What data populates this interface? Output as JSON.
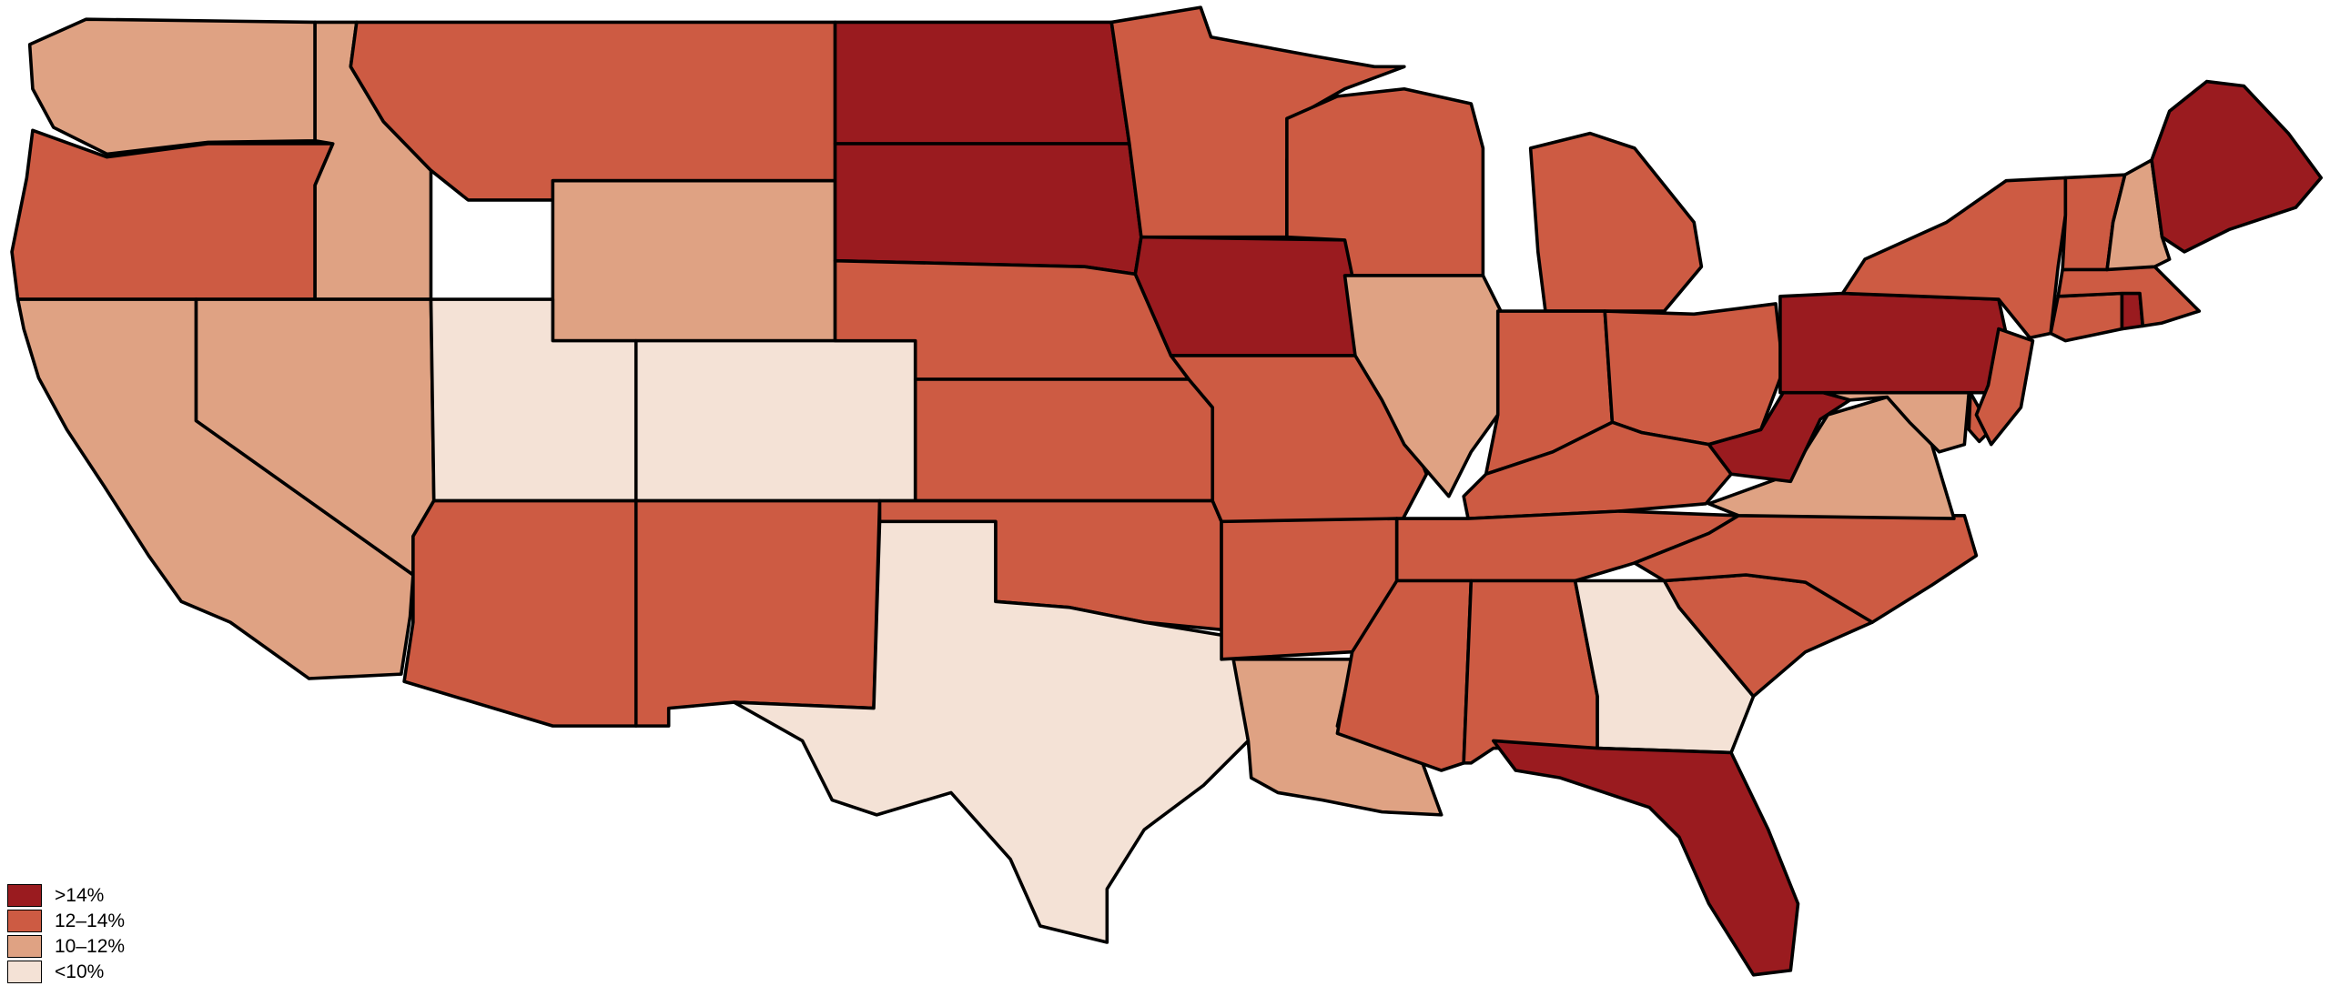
{
  "colors": {
    "gt14": "#9a1b1f",
    "p12_14": "#cd5b43",
    "p10_12": "#dfa283",
    "lt10": "#f4e2d6"
  },
  "legend": [
    {
      "label": ">14%",
      "color_key": "gt14"
    },
    {
      "label": "12–14%",
      "color_key": "p12_14"
    },
    {
      "label": "10–12%",
      "color_key": "p10_12"
    },
    {
      "label": "<10%",
      "color_key": "lt10"
    }
  ],
  "states": {
    "WA": "p10_12",
    "OR": "p12_14",
    "CA": "p10_12",
    "ID": "p10_12",
    "NV": "p10_12",
    "MT": "p12_14",
    "WY": "p10_12",
    "UT": "lt10",
    "CO": "lt10",
    "AZ": "p12_14",
    "NM": "p12_14",
    "ND": "gt14",
    "SD": "gt14",
    "NE": "p12_14",
    "KS": "p12_14",
    "OK": "p12_14",
    "TX": "lt10",
    "MN": "p12_14",
    "IA": "gt14",
    "MO": "p12_14",
    "AR": "p12_14",
    "LA": "p10_12",
    "WI": "p12_14",
    "IL": "p10_12",
    "MI": "p12_14",
    "IN": "p12_14",
    "OH": "p12_14",
    "KY": "p12_14",
    "TN": "p12_14",
    "MS": "p12_14",
    "AL": "p12_14",
    "GA": "lt10",
    "FL": "gt14",
    "SC": "p12_14",
    "NC": "p12_14",
    "VA": "p10_12",
    "WV": "gt14",
    "MD": "p10_12",
    "DE": "p12_14",
    "PA": "gt14",
    "NJ": "p12_14",
    "NY": "p12_14",
    "CT": "p12_14",
    "RI": "gt14",
    "MA": "p12_14",
    "VT": "p12_14",
    "NH": "p10_12",
    "ME": "gt14"
  }
}
